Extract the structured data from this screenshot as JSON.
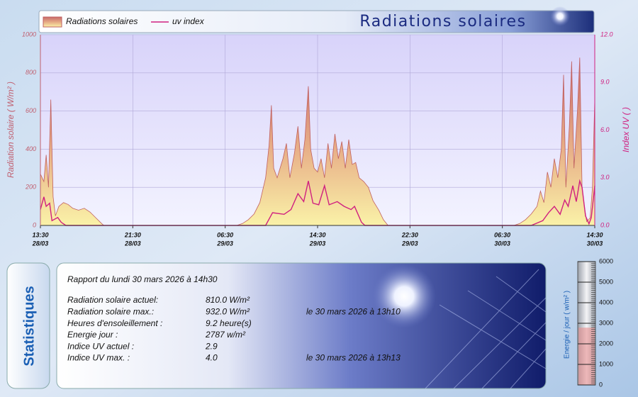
{
  "chart_data": [
    {
      "type": "line",
      "title": "Radiations solaires",
      "ylabel": "Radiation solaire ( W/m² )",
      "y2label": "Index UV (  )",
      "xlim": [
        0,
        48
      ],
      "xticks": [
        {
          "value": 0,
          "label": "13:30",
          "date": "28/03"
        },
        {
          "value": 8,
          "label": "21:30",
          "date": "28/03"
        },
        {
          "value": 16,
          "label": "06:30",
          "date": "29/03"
        },
        {
          "value": 24,
          "label": "14:30",
          "date": "29/03"
        },
        {
          "value": 32,
          "label": "22:30",
          "date": "29/03"
        },
        {
          "value": 40,
          "label": "06:30",
          "date": "30/03"
        },
        {
          "value": 48,
          "label": "14:30",
          "date": "30/03"
        }
      ],
      "ylim": [
        0,
        1000
      ],
      "yticks": [
        0,
        200,
        400,
        600,
        800,
        1000
      ],
      "y2lim": [
        0,
        12
      ],
      "y2ticks": [
        {
          "value": 0,
          "label": "0.0"
        },
        {
          "value": 3,
          "label": "3.0"
        },
        {
          "value": 6,
          "label": "6.0"
        },
        {
          "value": 9,
          "label": "9.0"
        },
        {
          "value": 12,
          "label": "12.0"
        }
      ],
      "grid": true,
      "series": [
        {
          "name": "Radiations solaires",
          "type": "area",
          "color": "#c06060",
          "x": [
            0,
            0.3,
            0.5,
            0.7,
            0.9,
            1.1,
            1.3,
            1.6,
            2.0,
            2.4,
            2.8,
            3.3,
            3.8,
            4.3,
            4.8,
            5.3,
            5.5,
            17.0,
            17.5,
            18.0,
            18.5,
            19.0,
            19.5,
            19.8,
            20.0,
            20.2,
            20.5,
            21.0,
            21.3,
            21.6,
            22.0,
            22.3,
            22.6,
            22.9,
            23.2,
            23.4,
            23.7,
            24.0,
            24.3,
            24.6,
            24.9,
            25.2,
            25.5,
            25.8,
            26.1,
            26.4,
            26.7,
            27.0,
            27.3,
            27.6,
            28.0,
            28.4,
            28.8,
            29.3,
            29.7,
            30.1,
            41.0,
            41.5,
            42.0,
            42.5,
            43.0,
            43.3,
            43.6,
            43.9,
            44.2,
            44.5,
            44.8,
            45.1,
            45.3,
            45.5,
            45.8,
            46.0,
            46.2,
            46.5,
            46.7,
            46.9,
            47.1,
            47.3,
            47.6,
            47.8,
            48.0
          ],
          "values": [
            270,
            230,
            370,
            200,
            660,
            150,
            50,
            100,
            120,
            110,
            90,
            80,
            90,
            70,
            40,
            10,
            0,
            0,
            10,
            30,
            60,
            120,
            250,
            420,
            630,
            300,
            250,
            350,
            430,
            250,
            380,
            520,
            300,
            450,
            730,
            400,
            300,
            280,
            350,
            250,
            430,
            300,
            480,
            350,
            440,
            300,
            450,
            320,
            330,
            250,
            230,
            200,
            130,
            80,
            30,
            0,
            0,
            10,
            30,
            60,
            100,
            180,
            120,
            280,
            200,
            350,
            250,
            400,
            790,
            200,
            520,
            860,
            300,
            600,
            880,
            200,
            100,
            20,
            40,
            200,
            660
          ]
        },
        {
          "name": "uv index",
          "type": "line",
          "axis": "y2",
          "color": "#d02080",
          "x": [
            0,
            0.3,
            0.5,
            0.8,
            1.0,
            1.5,
            1.8,
            2.2,
            19.5,
            20.1,
            21.1,
            21.7,
            22.3,
            22.8,
            23.2,
            23.6,
            24.1,
            24.6,
            25.0,
            25.7,
            26.3,
            26.9,
            27.2,
            27.8,
            28.1,
            42.5,
            43.5,
            44.0,
            44.5,
            45.0,
            45.4,
            45.7,
            46.1,
            46.4,
            46.7,
            46.9,
            47.2,
            47.5,
            47.7,
            48.0
          ],
          "values": [
            1.0,
            1.8,
            1.2,
            1.4,
            0.3,
            0.5,
            0.2,
            0,
            0,
            0.8,
            0.7,
            1.0,
            2.0,
            1.5,
            2.8,
            1.4,
            1.3,
            2.5,
            1.3,
            1.5,
            1.2,
            1.0,
            1.2,
            0.2,
            0,
            0,
            0.3,
            0.8,
            1.2,
            0.7,
            1.6,
            1.2,
            2.5,
            1.5,
            2.8,
            2.4,
            0.6,
            0.1,
            0.5,
            2.5
          ]
        }
      ]
    },
    {
      "type": "gauge",
      "label": "Energie / jour ( w/m² )",
      "ylim": [
        0,
        6000
      ],
      "yticks": [
        0,
        1000,
        2000,
        3000,
        4000,
        5000,
        6000
      ],
      "value": 2787,
      "color": "#e89090"
    }
  ],
  "stats": {
    "title": "Statistiques",
    "report": "Rapport du lundi 30 mars 2026 à 14h30",
    "rows": [
      [
        "Radiation solaire actuel:",
        "810.0 W/m²"
      ],
      [
        "Radiation solaire max.:",
        "932.0 W/m²",
        "le 30 mars 2026 à 13h10"
      ],
      [
        "Heures d'ensoleillement :",
        "9.2 heure(s)"
      ],
      [
        "Energie jour :",
        "2787 w/m²"
      ],
      [
        "Indice UV actuel :",
        "2.9"
      ],
      [
        "Indice UV max. :",
        "4.0",
        "le 30 mars 2026 à 13h13"
      ]
    ]
  }
}
